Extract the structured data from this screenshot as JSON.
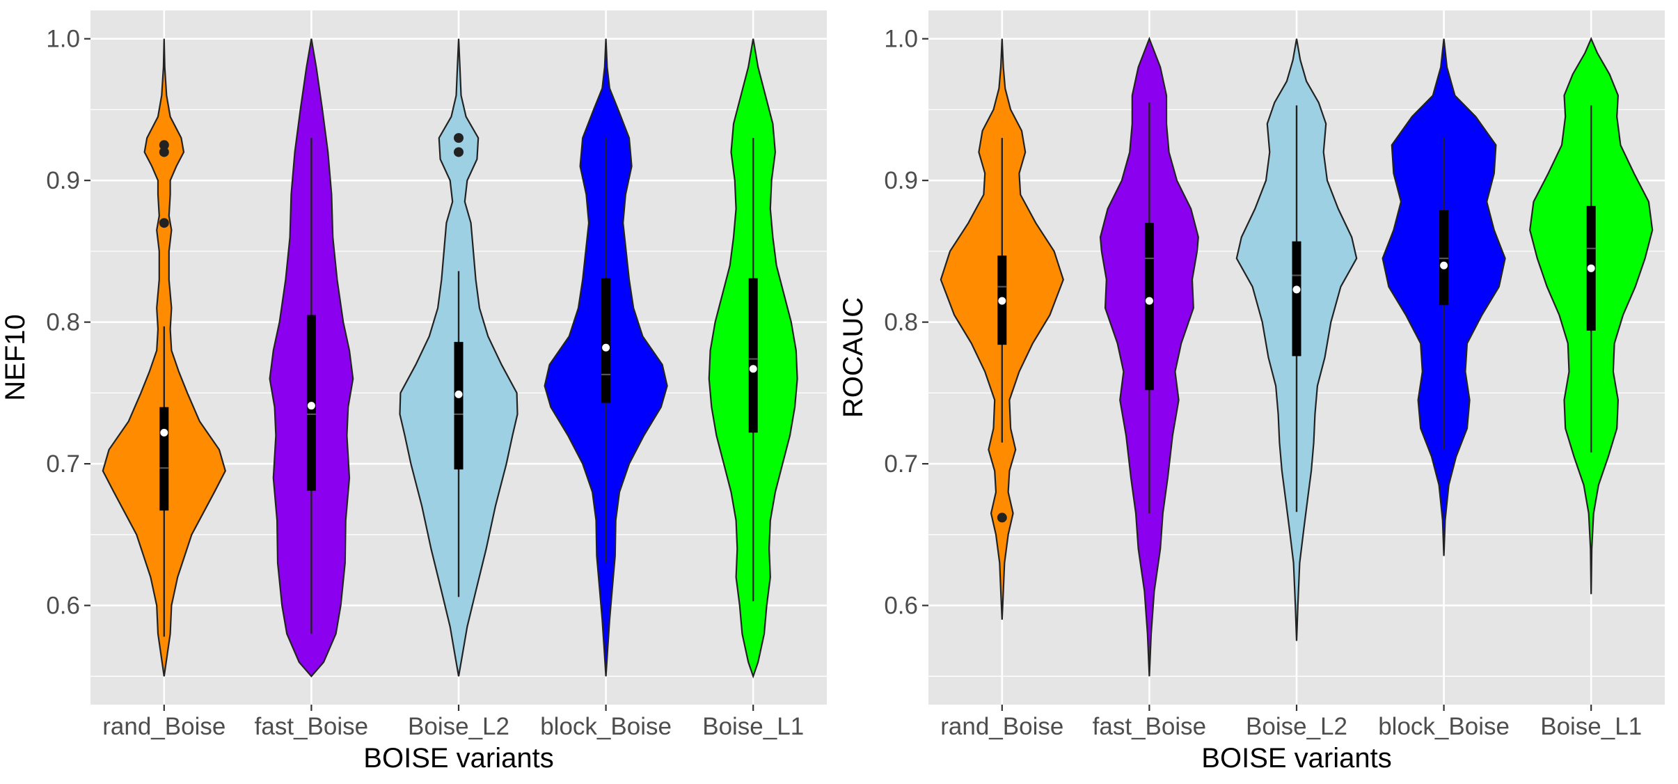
{
  "chart_data": [
    {
      "type": "violin",
      "xlabel": "BOISE variants",
      "ylabel": "NEF10",
      "ylim": [
        0.53,
        1.02
      ],
      "y_ticks": [
        0.6,
        0.7,
        0.8,
        0.9,
        1.0
      ],
      "y_tick_labels": [
        "0.6",
        "0.7",
        "0.8",
        "0.9",
        "1.0"
      ],
      "grid": true,
      "legend": "none",
      "categories": [
        "rand_Boise",
        "fast_Boise",
        "Boise_L2",
        "block_Boise",
        "Boise_L1"
      ],
      "series": [
        {
          "color": "#ff8c00",
          "min": 0.55,
          "max": 1.0,
          "density": [
            [
              0.55,
              0.0
            ],
            [
              0.565,
              0.05
            ],
            [
              0.58,
              0.1
            ],
            [
              0.6,
              0.12
            ],
            [
              0.62,
              0.22
            ],
            [
              0.65,
              0.45
            ],
            [
              0.68,
              0.82
            ],
            [
              0.695,
              1.0
            ],
            [
              0.71,
              0.9
            ],
            [
              0.73,
              0.58
            ],
            [
              0.75,
              0.38
            ],
            [
              0.765,
              0.24
            ],
            [
              0.78,
              0.12
            ],
            [
              0.795,
              0.1
            ],
            [
              0.81,
              0.12
            ],
            [
              0.83,
              0.08
            ],
            [
              0.85,
              0.08
            ],
            [
              0.865,
              0.12
            ],
            [
              0.875,
              0.08
            ],
            [
              0.89,
              0.1
            ],
            [
              0.9,
              0.1
            ],
            [
              0.91,
              0.2
            ],
            [
              0.92,
              0.32
            ],
            [
              0.93,
              0.28
            ],
            [
              0.945,
              0.1
            ],
            [
              0.96,
              0.04
            ],
            [
              0.98,
              0.01
            ],
            [
              1.0,
              0.0
            ]
          ],
          "q1": 0.667,
          "q3": 0.74,
          "median": 0.697,
          "mean": 0.722,
          "whisker_low": 0.578,
          "whisker_high": 0.797,
          "outliers": [
            0.87,
            0.92,
            0.925
          ]
        },
        {
          "color": "#8b00ee",
          "min": 0.55,
          "max": 1.0,
          "density": [
            [
              0.55,
              0.0
            ],
            [
              0.56,
              0.2
            ],
            [
              0.58,
              0.4
            ],
            [
              0.6,
              0.48
            ],
            [
              0.63,
              0.55
            ],
            [
              0.66,
              0.56
            ],
            [
              0.69,
              0.62
            ],
            [
              0.72,
              0.58
            ],
            [
              0.74,
              0.6
            ],
            [
              0.76,
              0.68
            ],
            [
              0.78,
              0.62
            ],
            [
              0.8,
              0.52
            ],
            [
              0.83,
              0.42
            ],
            [
              0.86,
              0.35
            ],
            [
              0.89,
              0.33
            ],
            [
              0.92,
              0.27
            ],
            [
              0.95,
              0.18
            ],
            [
              0.98,
              0.08
            ],
            [
              1.0,
              0.0
            ]
          ],
          "q1": 0.681,
          "q3": 0.805,
          "median": 0.735,
          "mean": 0.741,
          "whisker_low": 0.58,
          "whisker_high": 0.93,
          "outliers": []
        },
        {
          "color": "#9ed0e3",
          "min": 0.55,
          "max": 1.0,
          "density": [
            [
              0.55,
              0.0
            ],
            [
              0.565,
              0.06
            ],
            [
              0.585,
              0.14
            ],
            [
              0.61,
              0.28
            ],
            [
              0.64,
              0.45
            ],
            [
              0.67,
              0.6
            ],
            [
              0.7,
              0.78
            ],
            [
              0.72,
              0.88
            ],
            [
              0.735,
              0.96
            ],
            [
              0.75,
              0.95
            ],
            [
              0.77,
              0.7
            ],
            [
              0.79,
              0.48
            ],
            [
              0.81,
              0.34
            ],
            [
              0.83,
              0.28
            ],
            [
              0.85,
              0.24
            ],
            [
              0.87,
              0.2
            ],
            [
              0.885,
              0.1
            ],
            [
              0.9,
              0.14
            ],
            [
              0.915,
              0.3
            ],
            [
              0.93,
              0.32
            ],
            [
              0.945,
              0.12
            ],
            [
              0.96,
              0.04
            ],
            [
              0.98,
              0.02
            ],
            [
              1.0,
              0.0
            ]
          ],
          "q1": 0.696,
          "q3": 0.786,
          "median": 0.735,
          "mean": 0.749,
          "whisker_low": 0.606,
          "whisker_high": 0.836,
          "outliers": [
            0.92,
            0.93
          ]
        },
        {
          "color": "#0000ff",
          "min": 0.55,
          "max": 1.0,
          "density": [
            [
              0.55,
              0.0
            ],
            [
              0.57,
              0.03
            ],
            [
              0.59,
              0.06
            ],
            [
              0.61,
              0.1
            ],
            [
              0.635,
              0.15
            ],
            [
              0.66,
              0.16
            ],
            [
              0.68,
              0.22
            ],
            [
              0.7,
              0.38
            ],
            [
              0.72,
              0.62
            ],
            [
              0.74,
              0.9
            ],
            [
              0.755,
              1.0
            ],
            [
              0.77,
              0.92
            ],
            [
              0.79,
              0.6
            ],
            [
              0.81,
              0.45
            ],
            [
              0.83,
              0.38
            ],
            [
              0.85,
              0.33
            ],
            [
              0.87,
              0.28
            ],
            [
              0.89,
              0.32
            ],
            [
              0.91,
              0.42
            ],
            [
              0.93,
              0.38
            ],
            [
              0.95,
              0.2
            ],
            [
              0.965,
              0.06
            ],
            [
              0.98,
              0.02
            ],
            [
              1.0,
              0.0
            ]
          ],
          "q1": 0.743,
          "q3": 0.831,
          "median": 0.763,
          "mean": 0.782,
          "whisker_low": 0.63,
          "whisker_high": 0.93,
          "outliers": []
        },
        {
          "color": "#00ff00",
          "min": 0.55,
          "max": 1.0,
          "density": [
            [
              0.55,
              0.0
            ],
            [
              0.56,
              0.08
            ],
            [
              0.58,
              0.18
            ],
            [
              0.6,
              0.22
            ],
            [
              0.62,
              0.28
            ],
            [
              0.64,
              0.26
            ],
            [
              0.66,
              0.28
            ],
            [
              0.68,
              0.36
            ],
            [
              0.7,
              0.48
            ],
            [
              0.72,
              0.6
            ],
            [
              0.74,
              0.68
            ],
            [
              0.76,
              0.72
            ],
            [
              0.78,
              0.7
            ],
            [
              0.8,
              0.62
            ],
            [
              0.82,
              0.5
            ],
            [
              0.84,
              0.38
            ],
            [
              0.86,
              0.32
            ],
            [
              0.88,
              0.28
            ],
            [
              0.9,
              0.3
            ],
            [
              0.92,
              0.36
            ],
            [
              0.94,
              0.32
            ],
            [
              0.96,
              0.2
            ],
            [
              0.98,
              0.08
            ],
            [
              1.0,
              0.0
            ]
          ],
          "q1": 0.722,
          "q3": 0.831,
          "median": 0.774,
          "mean": 0.767,
          "whisker_low": 0.603,
          "whisker_high": 0.93,
          "outliers": []
        }
      ]
    },
    {
      "type": "violin",
      "xlabel": "BOISE variants",
      "ylabel": "ROCAUC",
      "ylim": [
        0.53,
        1.02
      ],
      "y_ticks": [
        0.6,
        0.7,
        0.8,
        0.9,
        1.0
      ],
      "y_tick_labels": [
        "0.6",
        "0.7",
        "0.8",
        "0.9",
        "1.0"
      ],
      "grid": true,
      "legend": "none",
      "categories": [
        "rand_Boise",
        "fast_Boise",
        "Boise_L2",
        "block_Boise",
        "Boise_L1"
      ],
      "series": [
        {
          "color": "#ff8c00",
          "min": 0.59,
          "max": 1.0,
          "density": [
            [
              0.59,
              0.0
            ],
            [
              0.61,
              0.02
            ],
            [
              0.63,
              0.04
            ],
            [
              0.65,
              0.1
            ],
            [
              0.665,
              0.18
            ],
            [
              0.68,
              0.1
            ],
            [
              0.695,
              0.12
            ],
            [
              0.71,
              0.22
            ],
            [
              0.725,
              0.14
            ],
            [
              0.745,
              0.12
            ],
            [
              0.765,
              0.28
            ],
            [
              0.785,
              0.5
            ],
            [
              0.805,
              0.78
            ],
            [
              0.83,
              1.0
            ],
            [
              0.85,
              0.85
            ],
            [
              0.87,
              0.55
            ],
            [
              0.89,
              0.3
            ],
            [
              0.905,
              0.28
            ],
            [
              0.92,
              0.38
            ],
            [
              0.935,
              0.32
            ],
            [
              0.95,
              0.14
            ],
            [
              0.965,
              0.05
            ],
            [
              0.98,
              0.02
            ],
            [
              1.0,
              0.0
            ]
          ],
          "q1": 0.784,
          "q3": 0.847,
          "median": 0.825,
          "mean": 0.815,
          "whisker_low": 0.715,
          "whisker_high": 0.93,
          "outliers": [
            0.662
          ]
        },
        {
          "color": "#8b00ee",
          "min": 0.55,
          "max": 1.0,
          "density": [
            [
              0.55,
              0.0
            ],
            [
              0.58,
              0.03
            ],
            [
              0.61,
              0.08
            ],
            [
              0.64,
              0.18
            ],
            [
              0.665,
              0.22
            ],
            [
              0.69,
              0.3
            ],
            [
              0.72,
              0.38
            ],
            [
              0.745,
              0.48
            ],
            [
              0.765,
              0.42
            ],
            [
              0.785,
              0.52
            ],
            [
              0.81,
              0.72
            ],
            [
              0.83,
              0.7
            ],
            [
              0.85,
              0.78
            ],
            [
              0.86,
              0.8
            ],
            [
              0.88,
              0.68
            ],
            [
              0.9,
              0.45
            ],
            [
              0.92,
              0.32
            ],
            [
              0.94,
              0.28
            ],
            [
              0.96,
              0.28
            ],
            [
              0.98,
              0.18
            ],
            [
              1.0,
              0.0
            ]
          ],
          "q1": 0.752,
          "q3": 0.87,
          "median": 0.845,
          "mean": 0.815,
          "whisker_low": 0.665,
          "whisker_high": 0.955,
          "outliers": []
        },
        {
          "color": "#9ed0e3",
          "min": 0.575,
          "max": 1.0,
          "density": [
            [
              0.575,
              0.0
            ],
            [
              0.6,
              0.02
            ],
            [
              0.63,
              0.05
            ],
            [
              0.655,
              0.12
            ],
            [
              0.675,
              0.18
            ],
            [
              0.695,
              0.24
            ],
            [
              0.715,
              0.28
            ],
            [
              0.735,
              0.3
            ],
            [
              0.755,
              0.34
            ],
            [
              0.775,
              0.46
            ],
            [
              0.8,
              0.56
            ],
            [
              0.825,
              0.72
            ],
            [
              0.845,
              0.98
            ],
            [
              0.86,
              0.9
            ],
            [
              0.88,
              0.68
            ],
            [
              0.9,
              0.5
            ],
            [
              0.92,
              0.44
            ],
            [
              0.94,
              0.48
            ],
            [
              0.955,
              0.36
            ],
            [
              0.97,
              0.16
            ],
            [
              0.985,
              0.06
            ],
            [
              1.0,
              0.0
            ]
          ],
          "q1": 0.776,
          "q3": 0.857,
          "median": 0.833,
          "mean": 0.823,
          "whisker_low": 0.666,
          "whisker_high": 0.953,
          "outliers": []
        },
        {
          "color": "#0000ff",
          "min": 0.635,
          "max": 1.0,
          "density": [
            [
              0.635,
              0.0
            ],
            [
              0.66,
              0.02
            ],
            [
              0.685,
              0.08
            ],
            [
              0.705,
              0.2
            ],
            [
              0.725,
              0.38
            ],
            [
              0.745,
              0.42
            ],
            [
              0.765,
              0.35
            ],
            [
              0.785,
              0.38
            ],
            [
              0.805,
              0.62
            ],
            [
              0.825,
              0.9
            ],
            [
              0.845,
              1.0
            ],
            [
              0.865,
              0.82
            ],
            [
              0.885,
              0.7
            ],
            [
              0.905,
              0.82
            ],
            [
              0.925,
              0.85
            ],
            [
              0.945,
              0.52
            ],
            [
              0.96,
              0.18
            ],
            [
              0.98,
              0.05
            ],
            [
              1.0,
              0.0
            ]
          ],
          "q1": 0.812,
          "q3": 0.879,
          "median": 0.845,
          "mean": 0.84,
          "whisker_low": 0.71,
          "whisker_high": 0.93,
          "outliers": []
        },
        {
          "color": "#00ff00",
          "min": 0.608,
          "max": 1.0,
          "density": [
            [
              0.608,
              0.0
            ],
            [
              0.64,
              0.01
            ],
            [
              0.665,
              0.04
            ],
            [
              0.685,
              0.12
            ],
            [
              0.705,
              0.28
            ],
            [
              0.725,
              0.42
            ],
            [
              0.745,
              0.44
            ],
            [
              0.765,
              0.36
            ],
            [
              0.785,
              0.38
            ],
            [
              0.805,
              0.52
            ],
            [
              0.825,
              0.72
            ],
            [
              0.845,
              0.88
            ],
            [
              0.865,
              1.0
            ],
            [
              0.885,
              0.94
            ],
            [
              0.905,
              0.7
            ],
            [
              0.925,
              0.48
            ],
            [
              0.945,
              0.42
            ],
            [
              0.96,
              0.44
            ],
            [
              0.975,
              0.3
            ],
            [
              0.99,
              0.1
            ],
            [
              1.0,
              0.0
            ]
          ],
          "q1": 0.794,
          "q3": 0.882,
          "median": 0.852,
          "mean": 0.838,
          "whisker_low": 0.708,
          "whisker_high": 0.953,
          "outliers": []
        }
      ]
    }
  ]
}
